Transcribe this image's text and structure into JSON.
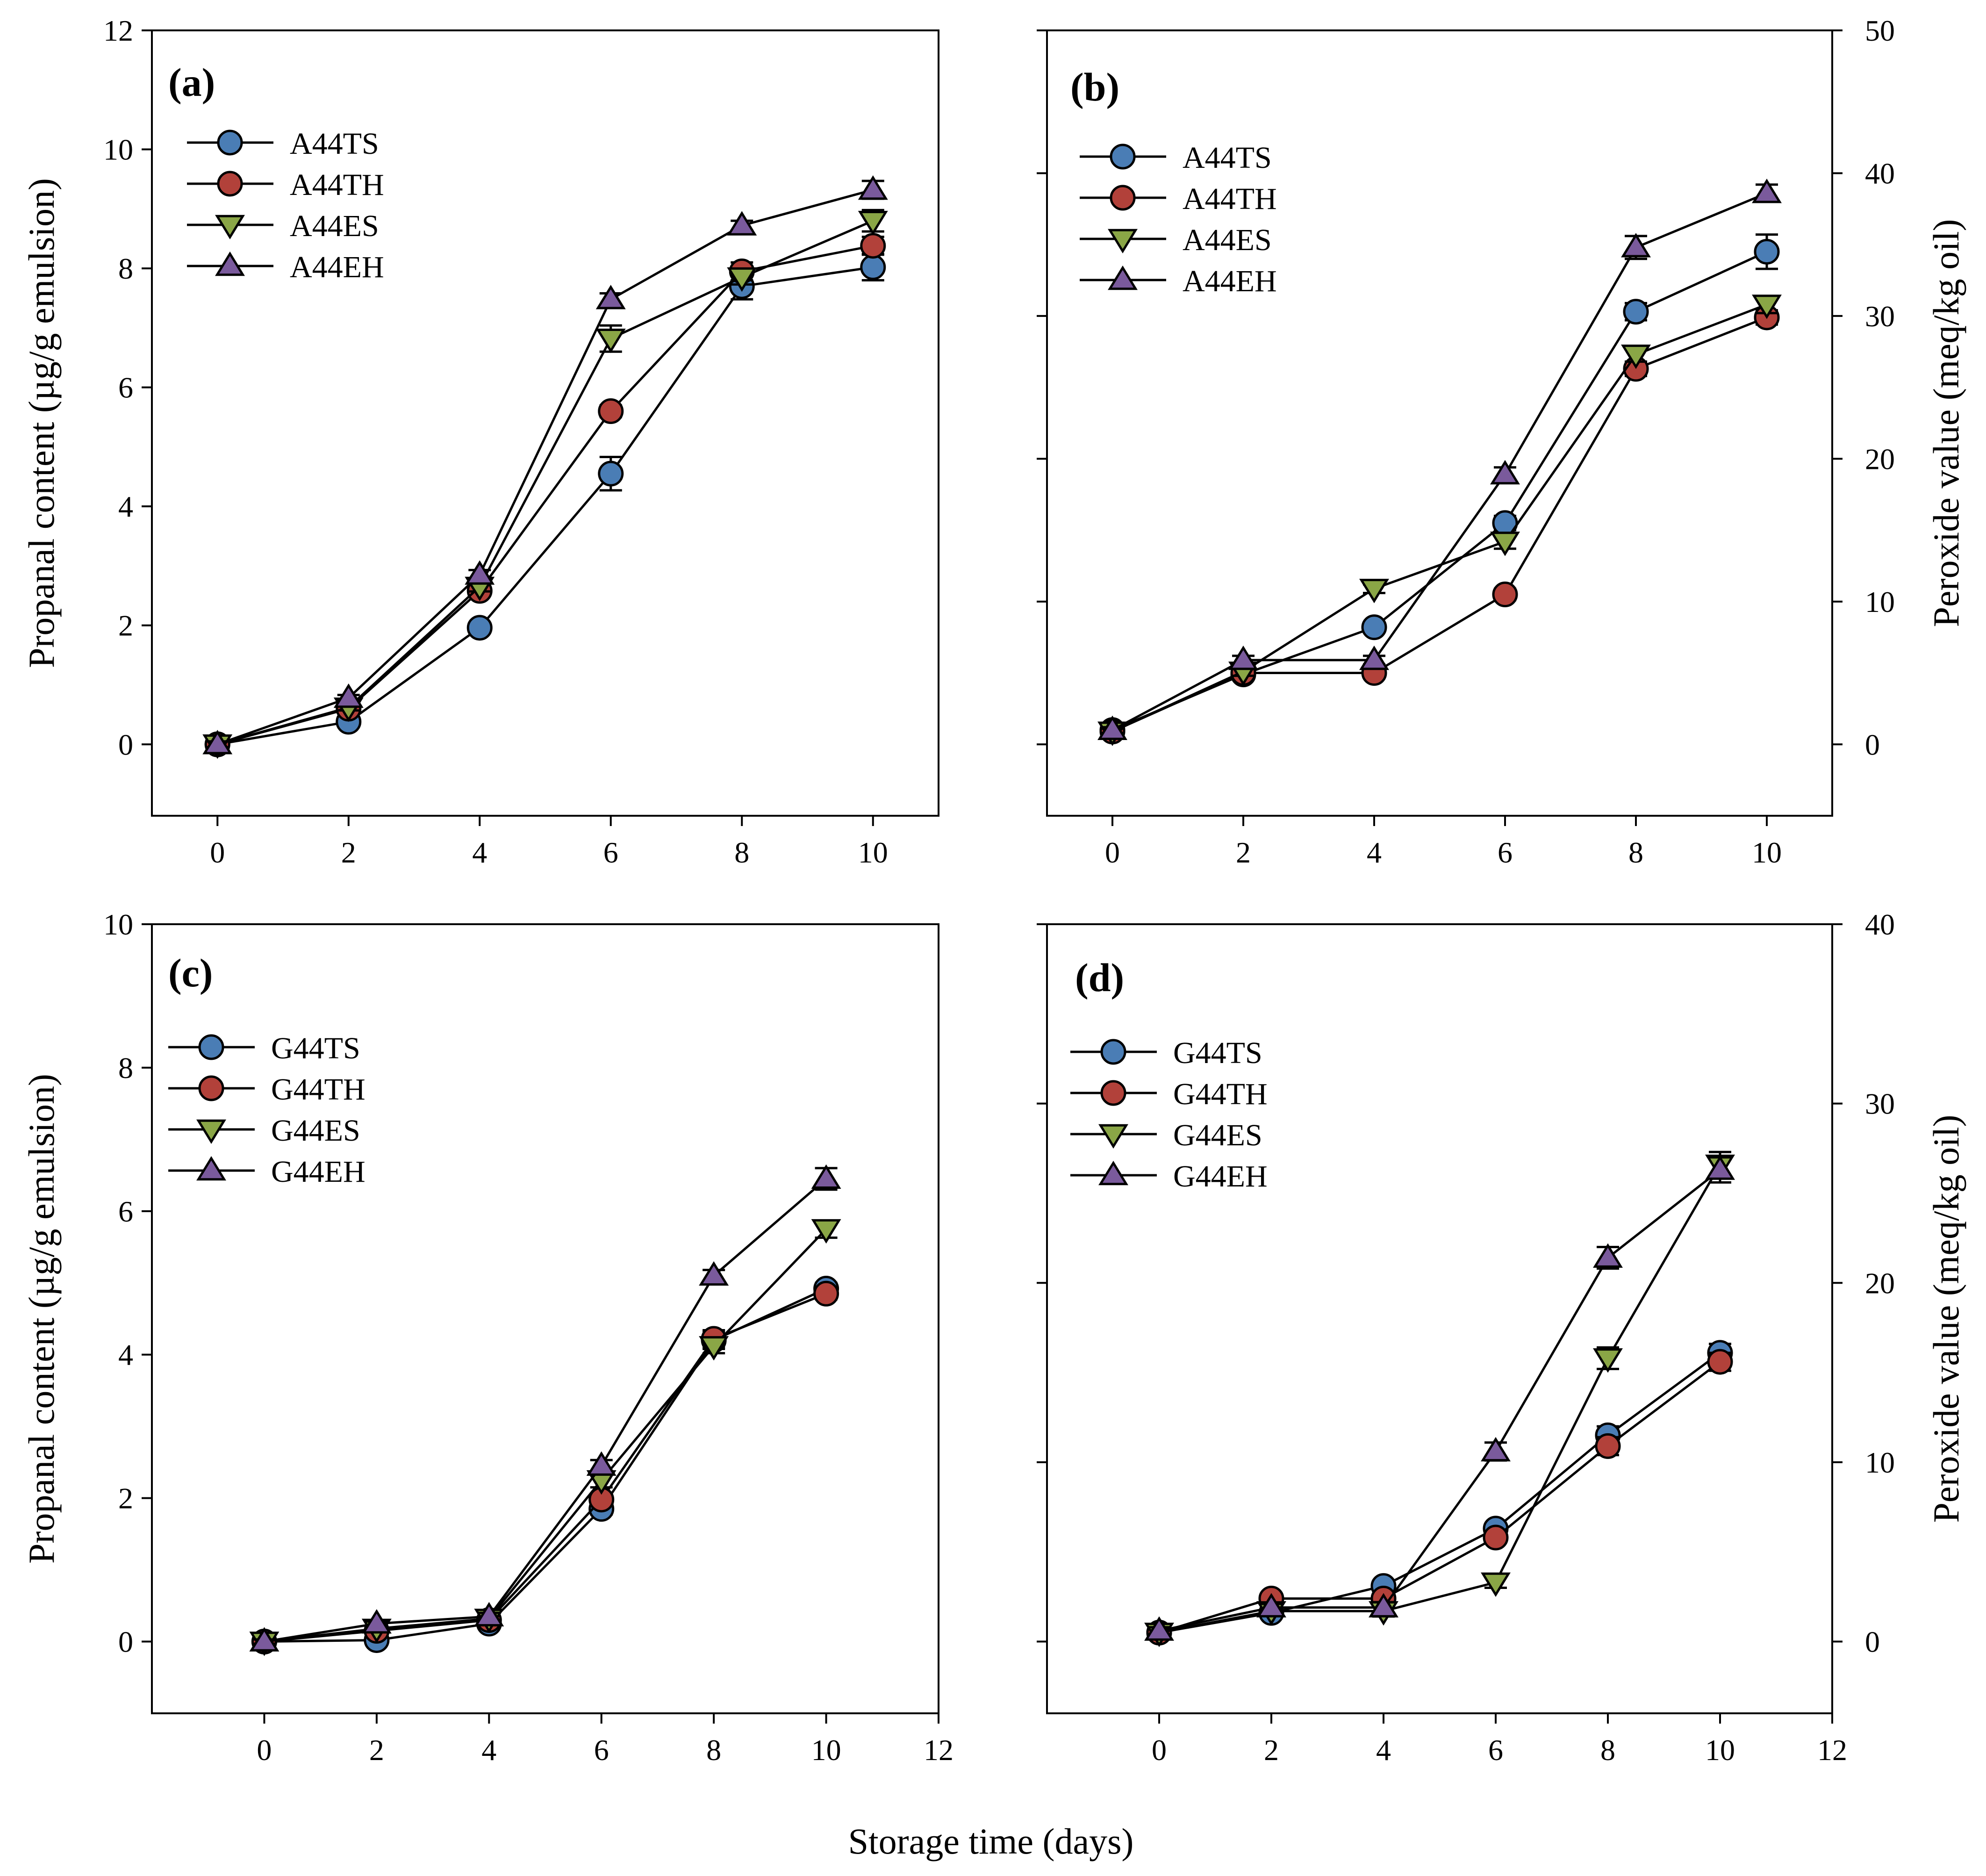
{
  "figure": {
    "xlabel_shared": "Storage time (days)"
  },
  "colors": {
    "A44TS": "#4a7db5",
    "A44TH": "#b2413a",
    "A44ES": "#8aa646",
    "A44EH": "#7a5a9c",
    "G44TS": "#4a7db5",
    "G44TH": "#b2413a",
    "G44ES": "#8aa646",
    "G44EH": "#7a5a9c"
  },
  "chart_data": [
    {
      "type": "line",
      "panel": "(a)",
      "ylabel": "Propanal content (µg/g emulsion)",
      "xlim": [
        -1,
        11
      ],
      "ylim": [
        -1.2,
        12
      ],
      "xticks": [
        0,
        2,
        4,
        6,
        8,
        10
      ],
      "yticks": [
        0,
        2,
        4,
        6,
        8,
        10,
        12
      ],
      "ytick_labels": [
        "0",
        "2",
        "4",
        "6",
        "8",
        "10",
        "12"
      ],
      "x": [
        0,
        2,
        4,
        6,
        8,
        10
      ],
      "series": [
        {
          "name": "A44TS",
          "marker": "circle",
          "values": [
            0,
            0.38,
            1.96,
            4.55,
            7.7,
            8.02
          ],
          "errors": [
            0.05,
            0.05,
            0.08,
            0.28,
            0.22,
            0.22
          ]
        },
        {
          "name": "A44TH",
          "marker": "circle",
          "values": [
            0,
            0.6,
            2.58,
            5.6,
            7.95,
            8.38
          ],
          "errors": [
            0.05,
            0.05,
            0.08,
            0.1,
            0.15,
            0.15
          ]
        },
        {
          "name": "A44ES",
          "marker": "triangle-down",
          "values": [
            0,
            0.62,
            2.65,
            6.82,
            7.85,
            8.8
          ],
          "errors": [
            0.05,
            0.05,
            0.08,
            0.22,
            0.12,
            0.18
          ]
        },
        {
          "name": "A44EH",
          "marker": "triangle-up",
          "values": [
            0,
            0.78,
            2.85,
            7.48,
            8.72,
            9.32
          ],
          "errors": [
            0.05,
            0.05,
            0.08,
            0.1,
            0.08,
            0.15
          ]
        }
      ]
    },
    {
      "type": "line",
      "panel": "(b)",
      "ylabel": "Peroxide value (meq/kg oil)",
      "y_axis_side": "right",
      "xlim": [
        -1,
        11
      ],
      "ylim": [
        -5,
        50
      ],
      "xticks": [
        0,
        2,
        4,
        6,
        8,
        10
      ],
      "yticks": [
        0,
        10,
        20,
        30,
        40,
        50
      ],
      "ytick_labels": [
        "0",
        "10",
        "20",
        "30",
        "40",
        "50"
      ],
      "x": [
        0,
        2,
        4,
        6,
        8,
        10
      ],
      "series": [
        {
          "name": "A44TS",
          "marker": "circle",
          "values": [
            1,
            4.9,
            8.2,
            15.5,
            30.3,
            34.5
          ],
          "errors": [
            0.2,
            0.3,
            0.3,
            0.5,
            0.6,
            1.2
          ]
        },
        {
          "name": "A44TH",
          "marker": "circle",
          "values": [
            0.9,
            5,
            5,
            10.5,
            26.3,
            29.9
          ],
          "errors": [
            0.2,
            0.3,
            0.3,
            0.4,
            0.5,
            0.5
          ]
        },
        {
          "name": "A44ES",
          "marker": "triangle-down",
          "values": [
            0.9,
            5.1,
            10.9,
            14.2,
            27.3,
            30.8
          ],
          "errors": [
            0.2,
            0.3,
            0.3,
            0.5,
            0.5,
            0.6
          ]
        },
        {
          "name": "A44EH",
          "marker": "triangle-up",
          "values": [
            1,
            5.9,
            5.9,
            18.9,
            34.8,
            38.6
          ],
          "errors": [
            0.2,
            0.3,
            0.3,
            0.5,
            0.8,
            0.6
          ]
        }
      ]
    },
    {
      "type": "line",
      "panel": "(c)",
      "ylabel": "Propanal content (µg/g emulsion)",
      "xlim": [
        -2,
        12
      ],
      "ylim": [
        -1,
        10
      ],
      "xticks": [
        0,
        2,
        4,
        6,
        8,
        10,
        12
      ],
      "yticks": [
        0,
        2,
        4,
        6,
        8,
        10
      ],
      "ytick_labels": [
        "0",
        "2",
        "4",
        "6",
        "8",
        "10"
      ],
      "x": [
        0,
        2,
        4,
        6,
        8,
        10
      ],
      "series": [
        {
          "name": "G44TS",
          "marker": "circle",
          "values": [
            0,
            0.02,
            0.25,
            1.85,
            4.2,
            4.92
          ],
          "errors": [
            0.03,
            0.03,
            0.05,
            0.08,
            0.12,
            0.08
          ]
        },
        {
          "name": "G44TH",
          "marker": "circle",
          "values": [
            0,
            0.15,
            0.3,
            1.98,
            4.22,
            4.85
          ],
          "errors": [
            0.03,
            0.03,
            0.05,
            0.08,
            0.12,
            0.08
          ]
        },
        {
          "name": "G44ES",
          "marker": "triangle-down",
          "values": [
            0,
            0.18,
            0.32,
            2.25,
            4.12,
            5.75
          ],
          "errors": [
            0.03,
            0.03,
            0.05,
            0.1,
            0.1,
            0.12
          ]
        },
        {
          "name": "G44EH",
          "marker": "triangle-up",
          "values": [
            0,
            0.25,
            0.35,
            2.45,
            5.1,
            6.45
          ],
          "errors": [
            0.03,
            0.03,
            0.05,
            0.08,
            0.08,
            0.15
          ]
        }
      ]
    },
    {
      "type": "line",
      "panel": "(d)",
      "ylabel": "Peroxide value (meq/kg oil)",
      "y_axis_side": "right",
      "xlim": [
        -2,
        12
      ],
      "ylim": [
        -4,
        40
      ],
      "xticks": [
        0,
        2,
        4,
        6,
        8,
        10,
        12
      ],
      "yticks": [
        0,
        10,
        20,
        30,
        40
      ],
      "ytick_labels": [
        "0",
        "10",
        "20",
        "30",
        "40"
      ],
      "x": [
        0,
        2,
        4,
        6,
        8,
        10
      ],
      "series": [
        {
          "name": "G44TS",
          "marker": "circle",
          "values": [
            0.5,
            1.6,
            3.1,
            6.3,
            11.5,
            16.1
          ],
          "errors": [
            0.2,
            0.2,
            0.3,
            0.3,
            0.5,
            0.5
          ]
        },
        {
          "name": "G44TH",
          "marker": "circle",
          "values": [
            0.5,
            2.4,
            2.4,
            5.8,
            10.9,
            15.6
          ],
          "errors": [
            0.2,
            0.2,
            0.3,
            0.3,
            0.5,
            0.5
          ]
        },
        {
          "name": "G44ES",
          "marker": "triangle-down",
          "values": [
            0.5,
            1.7,
            1.7,
            3.3,
            15.8,
            26.6
          ],
          "errors": [
            0.2,
            0.2,
            0.3,
            0.3,
            0.6,
            0.7
          ]
        },
        {
          "name": "G44EH",
          "marker": "triangle-up",
          "values": [
            0.6,
            1.9,
            1.9,
            10.6,
            21.4,
            26.3
          ],
          "errors": [
            0.2,
            0.2,
            0.3,
            0.5,
            0.6,
            0.7
          ]
        }
      ]
    }
  ]
}
